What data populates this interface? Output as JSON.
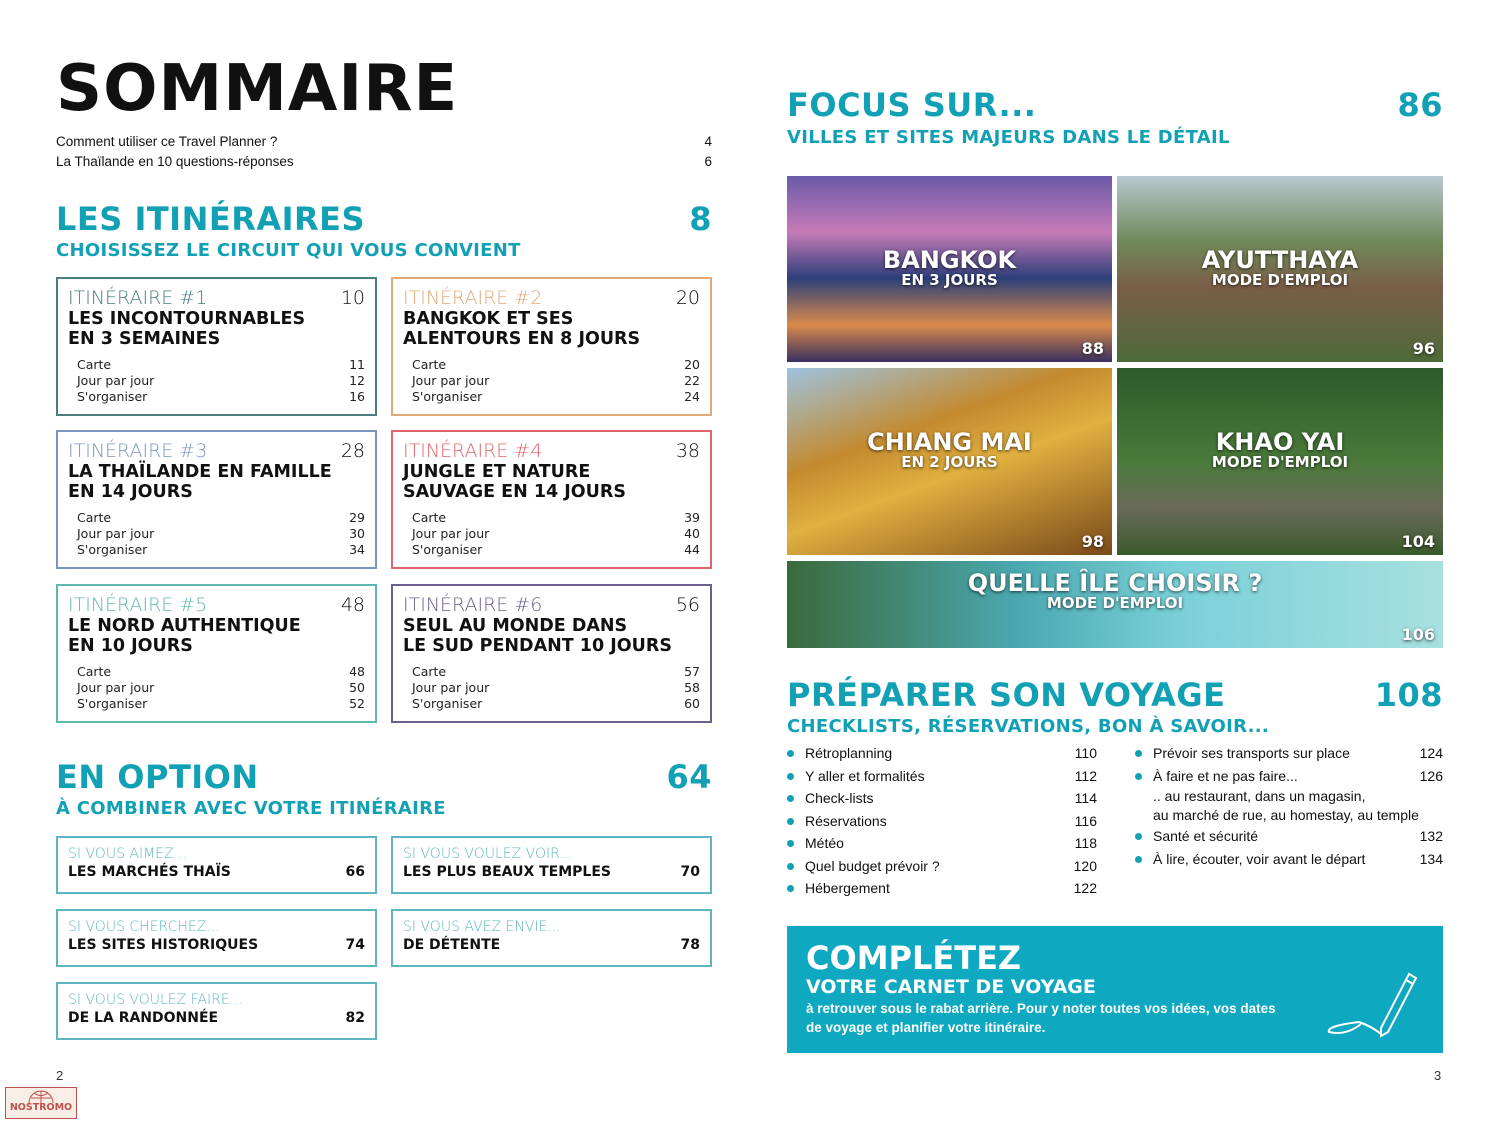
{
  "title": "SOMMAIRE",
  "intro": [
    {
      "label": "Comment utiliser ce Travel Planner ?",
      "page": "4"
    },
    {
      "label": "La Thaïlande en 10 questions-réponses",
      "page": "6"
    }
  ],
  "itineraires": {
    "title": "LES ITINÉRAIRES",
    "page": "8",
    "subtitle": "CHOISISSEZ LE CIRCUIT QUI VOUS CONVIENT",
    "items": [
      {
        "label": "ITINÉRAIRE #1",
        "page": "10",
        "name1": "LES INCONTOURNABLES",
        "name2": "EN 3 SEMAINES",
        "color": "#4a7e7c",
        "subs": [
          {
            "l": "Carte",
            "p": "11"
          },
          {
            "l": "Jour par jour",
            "p": "12"
          },
          {
            "l": "S'organiser",
            "p": "16"
          }
        ]
      },
      {
        "label": "ITINÉRAIRE #2",
        "page": "20",
        "name1": "BANGKOK ET SES",
        "name2": "ALENTOURS EN 8 JOURS",
        "color": "#e3a877",
        "subs": [
          {
            "l": "Carte",
            "p": "20"
          },
          {
            "l": "Jour par jour",
            "p": "22"
          },
          {
            "l": "S'organiser",
            "p": "24"
          }
        ]
      },
      {
        "label": "ITINÉRAIRE #3",
        "page": "28",
        "name1": "LA THAÏLANDE EN FAMILLE",
        "name2": "EN 14 JOURS",
        "color": "#7a95c2",
        "subs": [
          {
            "l": "Carte",
            "p": "29"
          },
          {
            "l": "Jour par jour",
            "p": "30"
          },
          {
            "l": "S'organiser",
            "p": "34"
          }
        ]
      },
      {
        "label": "ITINÉRAIRE #4",
        "page": "38",
        "name1": "JUNGLE ET NATURE",
        "name2": "SAUVAGE EN 14 JOURS",
        "color": "#e0646a",
        "subs": [
          {
            "l": "Carte",
            "p": "39"
          },
          {
            "l": "Jour par jour",
            "p": "40"
          },
          {
            "l": "S'organiser",
            "p": "44"
          }
        ]
      },
      {
        "label": "ITINÉRAIRE #5",
        "page": "48",
        "name1": "LE NORD AUTHENTIQUE",
        "name2": "EN 10 JOURS",
        "color": "#5fb8ad",
        "subs": [
          {
            "l": "Carte",
            "p": "48"
          },
          {
            "l": "Jour par jour",
            "p": "50"
          },
          {
            "l": "S'organiser",
            "p": "52"
          }
        ]
      },
      {
        "label": "ITINÉRAIRE #6",
        "page": "56",
        "name1": "SEUL AU MONDE DANS",
        "name2": "LE SUD PENDANT 10 JOURS",
        "color": "#6c5f8f",
        "subs": [
          {
            "l": "Carte",
            "p": "57"
          },
          {
            "l": "Jour par jour",
            "p": "58"
          },
          {
            "l": "S'organiser",
            "p": "60"
          }
        ]
      }
    ]
  },
  "option": {
    "title": "EN OPTION",
    "page": "64",
    "subtitle": "À COMBINER AVEC VOTRE ITINÉRAIRE",
    "items": [
      {
        "kicker": "SI VOUS AIMEZ...",
        "name": "LES MARCHÉS THAÏS",
        "page": "66"
      },
      {
        "kicker": "SI VOUS VOULEZ VOIR...",
        "name": "LES PLUS BEAUX TEMPLES",
        "page": "70"
      },
      {
        "kicker": "SI VOUS CHERCHEZ...",
        "name": "LES SITES HISTORIQUES",
        "page": "74"
      },
      {
        "kicker": "SI VOUS AVEZ ENVIE...",
        "name": "DE DÉTENTE",
        "page": "78"
      },
      {
        "kicker": "SI VOUS VOULEZ FAIRE...",
        "name": "DE LA RANDONNÉE",
        "page": "82"
      }
    ]
  },
  "focus": {
    "title": "FOCUS SUR...",
    "page": "86",
    "subtitle": "VILLES ET SITES MAJEURS DANS LE DÉTAIL",
    "photos": [
      {
        "title": "BANGKOK",
        "sub": "EN 3 JOURS",
        "page": "88"
      },
      {
        "title": "AYUTTHAYA",
        "sub": "MODE D'EMPLOI",
        "page": "96"
      },
      {
        "title": "CHIANG MAI",
        "sub": "EN 2 JOURS",
        "page": "98"
      },
      {
        "title": "KHAO YAI",
        "sub": "MODE D'EMPLOI",
        "page": "104"
      },
      {
        "title": "QUELLE ÎLE CHOISIR ?",
        "sub": "MODE D'EMPLOI",
        "page": "106"
      }
    ]
  },
  "preparer": {
    "title": "PRÉPARER SON VOYAGE",
    "page": "108",
    "subtitle": "CHECKLISTS, RÉSERVATIONS, BON À SAVOIR...",
    "col1": [
      {
        "l": "Rétroplanning",
        "p": "110"
      },
      {
        "l": "Y aller et formalités",
        "p": "112"
      },
      {
        "l": "Check-lists",
        "p": "114"
      },
      {
        "l": "Réservations",
        "p": "116"
      },
      {
        "l": "Météo",
        "p": "118"
      },
      {
        "l": "Quel budget prévoir ?",
        "p": "120"
      },
      {
        "l": "Hébergement",
        "p": "122"
      }
    ],
    "col2": [
      {
        "l": "Prévoir ses transports sur place",
        "p": "124"
      },
      {
        "l": "À faire et ne pas faire...",
        "p": "126"
      }
    ],
    "note1": ".. au restaurant, dans un magasin,",
    "note2": "au marché de rue, au homestay, au temple",
    "col3": [
      {
        "l": "Santé et sécurité",
        "p": "132"
      },
      {
        "l": "À lire, écouter, voir avant le départ",
        "p": "134"
      }
    ]
  },
  "cta": {
    "title": "COMPLÉTEZ",
    "subtitle": "VOTRE CARNET DE VOYAGE",
    "text1": "à retrouver sous le rabat arrière. Pour y noter toutes vos idées, vos dates",
    "text2": "de voyage et planifier votre itinéraire.",
    "icon": "pen-icon"
  },
  "page_left": "2",
  "page_right": "3",
  "logo": "NOSTROMO",
  "accent": "#12a0b5"
}
